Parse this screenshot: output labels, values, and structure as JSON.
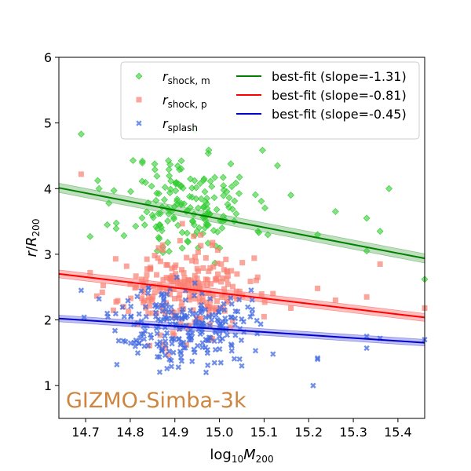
{
  "chart_data": {
    "type": "scatter",
    "title": "",
    "xlabel": "log10M200",
    "ylabel": "r/R200",
    "xlim": [
      14.64,
      15.46
    ],
    "ylim": [
      0.5,
      6.0
    ],
    "xticks": [
      {
        "value": 14.7,
        "label": "14.7"
      },
      {
        "value": 14.8,
        "label": "14.8"
      },
      {
        "value": 14.9,
        "label": "14.9"
      },
      {
        "value": 15.0,
        "label": "15.0"
      },
      {
        "value": 15.1,
        "label": "15.1"
      },
      {
        "value": 15.2,
        "label": "15.2"
      },
      {
        "value": 15.3,
        "label": "15.3"
      },
      {
        "value": 15.4,
        "label": "15.4"
      }
    ],
    "yticks": [
      {
        "value": 1,
        "label": "1"
      },
      {
        "value": 2,
        "label": "2"
      },
      {
        "value": 3,
        "label": "3"
      },
      {
        "value": 4,
        "label": "4"
      },
      {
        "value": 5,
        "label": "5"
      },
      {
        "value": 6,
        "label": "6"
      }
    ],
    "annotation": "GIZMO-Simba-3k",
    "annotation_color": "#cd853f",
    "legend_position": "top-right",
    "series": [
      {
        "name": "r_shock,m",
        "label_main": "r",
        "label_sub": "shock, m",
        "marker": "diamond",
        "color": "#32cd32",
        "cloud": {
          "count": 170,
          "x_center": 14.93,
          "x_spread": 0.09,
          "y_center": 3.75,
          "y_spread": 0.42,
          "seed": 11
        },
        "points": [
          [
            14.69,
            4.83
          ],
          [
            15.46,
            2.62
          ],
          [
            15.38,
            4.0
          ],
          [
            15.33,
            3.55
          ],
          [
            15.26,
            3.65
          ],
          [
            15.22,
            3.3
          ],
          [
            14.71,
            3.27
          ],
          [
            14.73,
            4.0
          ],
          [
            15.33,
            3.05
          ],
          [
            15.36,
            3.35
          ],
          [
            15.13,
            4.35
          ],
          [
            15.16,
            3.9
          ]
        ]
      },
      {
        "name": "r_shock,p",
        "label_main": "r",
        "label_sub": "shock, p",
        "marker": "square",
        "color": "#fa8072",
        "cloud": {
          "count": 230,
          "x_center": 14.92,
          "x_spread": 0.09,
          "y_center": 2.45,
          "y_spread": 0.33,
          "seed": 23
        },
        "points": [
          [
            14.69,
            4.22
          ],
          [
            14.71,
            2.72
          ],
          [
            15.46,
            2.18
          ],
          [
            15.36,
            2.85
          ],
          [
            15.33,
            2.35
          ],
          [
            15.26,
            2.3
          ],
          [
            15.22,
            2.48
          ],
          [
            15.16,
            2.18
          ],
          [
            15.12,
            2.4
          ],
          [
            15.1,
            2.05
          ]
        ]
      },
      {
        "name": "r_splash",
        "label_main": "r",
        "label_sub": "splash",
        "marker": "x",
        "color": "#4169e1",
        "cloud": {
          "count": 250,
          "x_center": 14.92,
          "x_spread": 0.09,
          "y_center": 1.92,
          "y_spread": 0.3,
          "seed": 37
        },
        "points": [
          [
            14.69,
            2.45
          ],
          [
            14.73,
            2.32
          ],
          [
            14.77,
            1.32
          ],
          [
            15.46,
            1.7
          ],
          [
            15.36,
            1.72
          ],
          [
            15.33,
            1.57
          ],
          [
            15.33,
            1.75
          ],
          [
            15.22,
            1.42
          ],
          [
            15.22,
            1.4
          ],
          [
            15.21,
            1.0
          ],
          [
            15.12,
            1.48
          ],
          [
            15.05,
            1.3
          ],
          [
            14.97,
            1.2
          ]
        ]
      }
    ],
    "fits": [
      {
        "label": "best-fit (slope=-1.31)",
        "slope": -1.31,
        "intercept_at_15": 3.54,
        "band": 0.07,
        "color": "#008000"
      },
      {
        "label": "best-fit (slope=-0.81)",
        "slope": -0.81,
        "intercept_at_15": 2.41,
        "band": 0.06,
        "color": "#ff0000"
      },
      {
        "label": "best-fit (slope=-0.45)",
        "slope": -0.45,
        "intercept_at_15": 1.86,
        "band": 0.05,
        "color": "#0000cd"
      }
    ]
  }
}
